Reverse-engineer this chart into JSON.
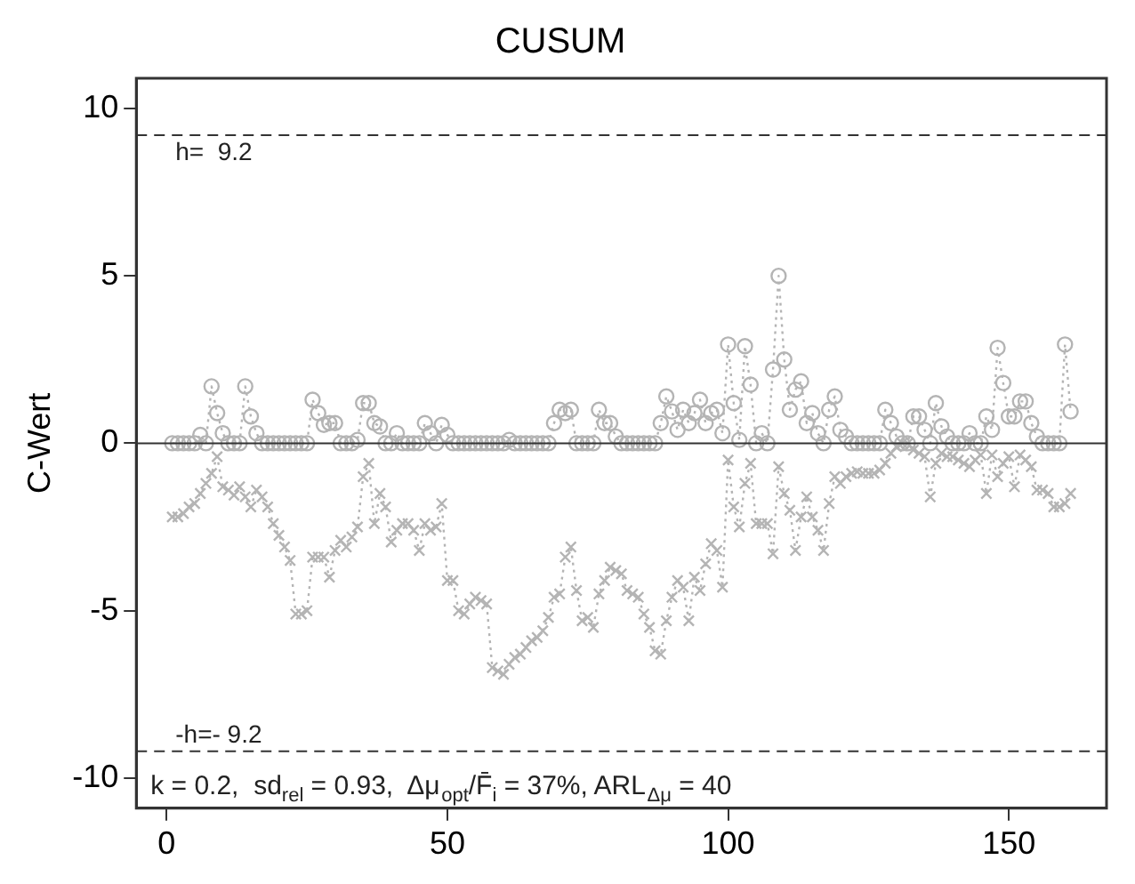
{
  "chart_data": {
    "type": "line",
    "title": "CUSUM",
    "ylabel": "C-Wert",
    "x": [
      1,
      2,
      3,
      4,
      5,
      6,
      7,
      8,
      9,
      10,
      11,
      12,
      13,
      14,
      15,
      16,
      17,
      18,
      19,
      20,
      21,
      22,
      23,
      24,
      25,
      26,
      27,
      28,
      29,
      30,
      31,
      32,
      33,
      34,
      35,
      36,
      37,
      38,
      39,
      40,
      41,
      42,
      43,
      44,
      45,
      46,
      47,
      48,
      49,
      50,
      51,
      52,
      53,
      54,
      55,
      56,
      57,
      58,
      59,
      60,
      61,
      62,
      63,
      64,
      65,
      66,
      67,
      68,
      69,
      70,
      71,
      72,
      73,
      74,
      75,
      76,
      77,
      78,
      79,
      80,
      81,
      82,
      83,
      84,
      85,
      86,
      87,
      88,
      89,
      90,
      91,
      92,
      93,
      94,
      95,
      96,
      97,
      98,
      99,
      100,
      101,
      102,
      103,
      104,
      105,
      106,
      107,
      108,
      109,
      110,
      111,
      112,
      113,
      114,
      115,
      116,
      117,
      118,
      119,
      120,
      121,
      122,
      123,
      124,
      125,
      126,
      127,
      128,
      129,
      130,
      131,
      132,
      133,
      134,
      135,
      136,
      137,
      138,
      139,
      140,
      141,
      142,
      143,
      144,
      145,
      146,
      147,
      148,
      149,
      150,
      151,
      152,
      153,
      154,
      155,
      156,
      157,
      158,
      159,
      160,
      161
    ],
    "series": [
      {
        "color": "#b4b4b4",
        "marker": "circle",
        "values": [
          0,
          0,
          0,
          0,
          0,
          0.25,
          0,
          1.7,
          0.9,
          0.3,
          0,
          0,
          0,
          1.7,
          0.8,
          0.3,
          0,
          0,
          0,
          0,
          0,
          0,
          0,
          0,
          0,
          1.3,
          0.9,
          0.55,
          0.6,
          0.6,
          0,
          0,
          0,
          0.1,
          1.2,
          1.2,
          0.6,
          0.5,
          0,
          0,
          0.3,
          0,
          0,
          0,
          0,
          0.6,
          0.3,
          0,
          0.55,
          0.25,
          0,
          0,
          0,
          0,
          0,
          0,
          0,
          0,
          0,
          0,
          0.1,
          0,
          0,
          0,
          0,
          0,
          0,
          0,
          0.6,
          1.0,
          0.9,
          1.0,
          0,
          0,
          0,
          0,
          1.0,
          0.6,
          0.6,
          0.2,
          0,
          0,
          0,
          0,
          0,
          0,
          0,
          0.6,
          1.4,
          0.95,
          0.4,
          1.0,
          0.6,
          0.9,
          1.3,
          0.6,
          0.9,
          1.0,
          0.3,
          2.95,
          1.2,
          0.1,
          2.9,
          1.75,
          0,
          0.3,
          0,
          2.2,
          5.0,
          2.5,
          1.0,
          1.6,
          1.85,
          0.6,
          0.9,
          0.3,
          0,
          1.0,
          1.4,
          0.4,
          0.2,
          0,
          0,
          0,
          0,
          0,
          0,
          1.0,
          0.6,
          0.2,
          0,
          0,
          0.8,
          0.8,
          0.4,
          0,
          1.2,
          0.5,
          0.2,
          0,
          0,
          0,
          0.3,
          0,
          0,
          0.8,
          0.4,
          2.85,
          1.8,
          0.8,
          0.8,
          1.25,
          1.25,
          0.6,
          0.2,
          0,
          0,
          0,
          0,
          2.95,
          0.95
        ]
      },
      {
        "color": "#b4b4b4",
        "marker": "cross",
        "values": [
          -2.2,
          -2.2,
          -2.1,
          -1.9,
          -1.8,
          -1.5,
          -1.2,
          -0.9,
          -0.4,
          -1.3,
          -1.4,
          -1.55,
          -1.3,
          -1.6,
          -1.9,
          -1.4,
          -1.6,
          -1.9,
          -2.4,
          -2.75,
          -3.1,
          -3.5,
          -5.1,
          -5.1,
          -5.0,
          -3.4,
          -3.4,
          -3.4,
          -4.0,
          -3.2,
          -2.9,
          -3.1,
          -2.8,
          -2.5,
          -1.0,
          -0.6,
          -2.4,
          -1.5,
          -1.9,
          -2.95,
          -2.6,
          -2.4,
          -2.4,
          -2.6,
          -3.2,
          -2.4,
          -2.6,
          -2.5,
          -1.8,
          -4.1,
          -4.1,
          -5.0,
          -5.1,
          -4.8,
          -4.6,
          -4.7,
          -4.8,
          -6.7,
          -6.8,
          -6.9,
          -6.6,
          -6.4,
          -6.3,
          -6.1,
          -5.9,
          -5.8,
          -5.6,
          -5.2,
          -4.6,
          -4.5,
          -3.4,
          -3.1,
          -4.4,
          -5.3,
          -5.2,
          -5.5,
          -4.5,
          -4.1,
          -3.7,
          -3.8,
          -3.9,
          -4.4,
          -4.5,
          -4.6,
          -5.1,
          -5.5,
          -6.2,
          -6.3,
          -5.3,
          -4.6,
          -4.1,
          -4.3,
          -5.3,
          -4.0,
          -4.4,
          -3.6,
          -3.0,
          -3.2,
          -4.3,
          -0.5,
          -1.9,
          -2.5,
          -1.2,
          -0.6,
          -2.4,
          -2.4,
          -2.4,
          -3.3,
          -0.7,
          -1.5,
          -2.0,
          -3.2,
          -2.2,
          -1.6,
          -2.2,
          -2.6,
          -3.2,
          -1.8,
          -1.0,
          -1.2,
          -1.0,
          -0.9,
          -0.85,
          -0.9,
          -0.9,
          -0.9,
          -0.8,
          -0.6,
          -0.3,
          -0.1,
          0,
          0,
          -0.2,
          -0.3,
          -0.4,
          -1.6,
          -0.6,
          -0.3,
          -0.4,
          -0.4,
          -0.5,
          -0.6,
          -0.7,
          -0.5,
          -0.35,
          -1.5,
          -0.35,
          -1.0,
          -0.6,
          -0.4,
          -1.3,
          -0.35,
          -0.5,
          -0.7,
          -1.4,
          -1.4,
          -1.5,
          -1.9,
          -1.9,
          -1.8,
          -1.5
        ]
      }
    ],
    "line_style": "dotted",
    "xlim": [
      -5.4,
      167.4
    ],
    "xticks": [
      0,
      50,
      100,
      150
    ],
    "ylim": [
      -10.9,
      10.9
    ],
    "yticks": [
      -10,
      -5,
      0,
      5,
      10
    ],
    "grid": false,
    "legend": false,
    "ref_lines": [
      {
        "axis": "y",
        "value": 9.2,
        "label": "h=  9.2",
        "line_style": "dashed",
        "color": "#333333"
      },
      {
        "axis": "y",
        "value": -9.2,
        "label": "-h=- 9.2",
        "line_style": "dashed",
        "color": "#333333"
      },
      {
        "axis": "y",
        "value": 0,
        "line_style": "solid",
        "color": "#333333"
      }
    ],
    "annotations": [
      "k = 0.2,  sd$_{rel}$ = 0.93,  Δμ$_{opt}$/F̄$_{i}$ = 37%, ARL$_{Δμ}$ = 40"
    ]
  }
}
